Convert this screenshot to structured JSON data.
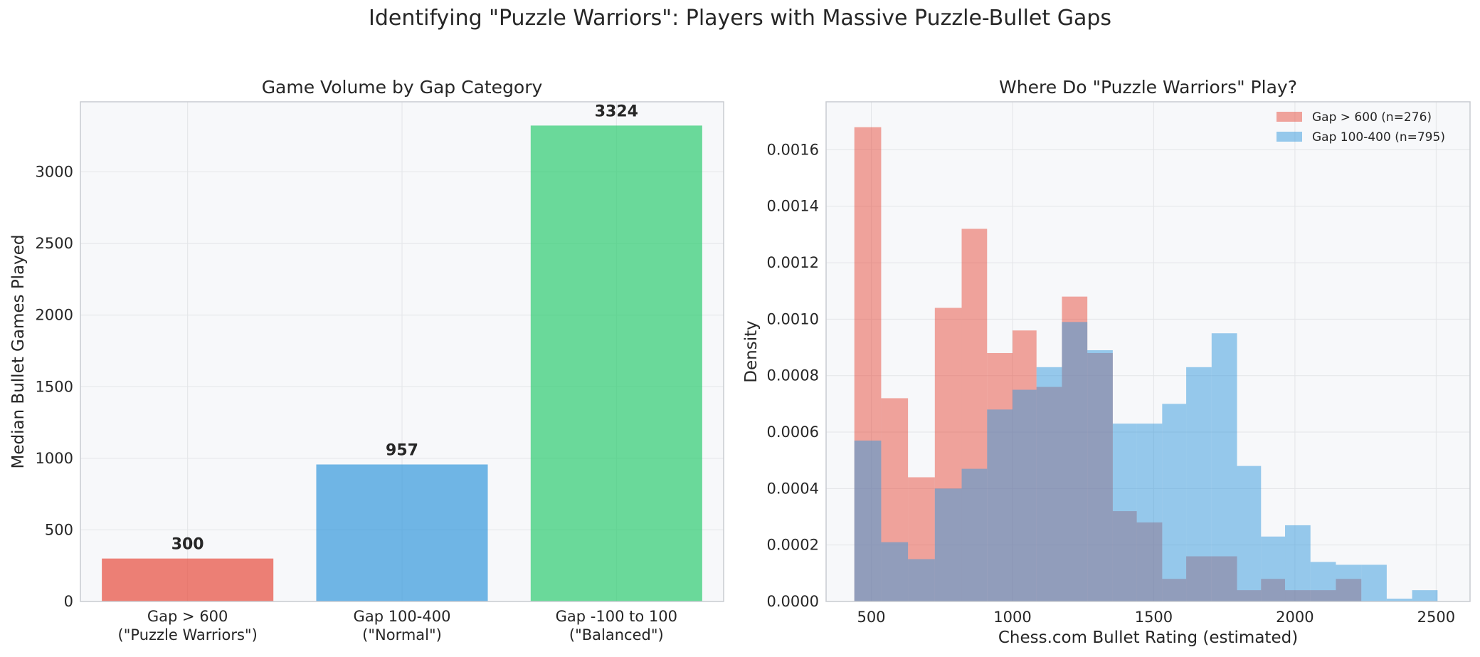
{
  "suptitle": "Identifying \"Puzzle Warriors\": Players with Massive Puzzle-Bullet Gaps",
  "chart_data": [
    {
      "type": "bar",
      "title": "Game Volume by Gap Category",
      "xlabel": "",
      "ylabel": "Median Bullet Games Played",
      "categories": [
        [
          "Gap > 600",
          "(\"Puzzle Warriors\")"
        ],
        [
          "Gap 100-400",
          "(\"Normal\")"
        ],
        [
          "Gap -100 to 100",
          "(\"Balanced\")"
        ]
      ],
      "values": [
        300,
        957,
        3324
      ],
      "value_labels": [
        "300",
        "957",
        "3324"
      ],
      "colors": [
        "#e74c3c",
        "#3498db",
        "#2ecc71"
      ],
      "ylim": [
        0,
        3490
      ],
      "yticks": [
        0,
        500,
        1000,
        1500,
        2000,
        2500,
        3000
      ],
      "ytick_labels": [
        "0",
        "500",
        "1000",
        "1500",
        "2000",
        "2500",
        "3000"
      ],
      "grid": true
    },
    {
      "type": "histogram",
      "title": "Where Do \"Puzzle Warriors\" Play?",
      "xlabel": "Chess.com Bullet Rating (estimated)",
      "ylabel": "Density",
      "xlim": [
        340,
        2620
      ],
      "ylim": [
        0,
        0.00177
      ],
      "xticks": [
        500,
        1000,
        1500,
        2000,
        2500
      ],
      "xtick_labels": [
        "500",
        "1000",
        "1500",
        "2000",
        "2500"
      ],
      "yticks": [
        0,
        0.0002,
        0.0004,
        0.0006,
        0.0008,
        0.001,
        0.0012,
        0.0014,
        0.0016
      ],
      "ytick_labels": [
        "0.0000",
        "0.0002",
        "0.0004",
        "0.0006",
        "0.0008",
        "0.0010",
        "0.0012",
        "0.0014",
        "0.0016"
      ],
      "legend_position": "top-right",
      "grid": true,
      "series": [
        {
          "name": "Gap > 600 (n=276)",
          "color": "#e74c3c",
          "bins": [
            [
              440,
              535,
              0.00168
            ],
            [
              535,
              630,
              0.00072
            ],
            [
              630,
              725,
              0.00044
            ],
            [
              725,
              820,
              0.00104
            ],
            [
              820,
              910,
              0.00132
            ],
            [
              910,
              1000,
              0.00088
            ],
            [
              1000,
              1085,
              0.00096
            ],
            [
              1085,
              1175,
              0.00076
            ],
            [
              1175,
              1265,
              0.00108
            ],
            [
              1265,
              1355,
              0.00088
            ],
            [
              1355,
              1440,
              0.00032
            ],
            [
              1440,
              1530,
              0.00028
            ],
            [
              1530,
              1615,
              8e-05
            ],
            [
              1615,
              1705,
              0.00016
            ],
            [
              1705,
              1795,
              0.00016
            ],
            [
              1795,
              1880,
              4e-05
            ],
            [
              1880,
              1965,
              8e-05
            ],
            [
              1965,
              2055,
              4e-05
            ],
            [
              2055,
              2145,
              4e-05
            ],
            [
              2145,
              2235,
              8e-05
            ]
          ]
        },
        {
          "name": "Gap 100-400 (n=795)",
          "color": "#3498db",
          "bins": [
            [
              440,
              535,
              0.00057
            ],
            [
              535,
              630,
              0.00021
            ],
            [
              630,
              725,
              0.00015
            ],
            [
              725,
              820,
              0.0004
            ],
            [
              820,
              910,
              0.00047
            ],
            [
              910,
              1000,
              0.00068
            ],
            [
              1000,
              1085,
              0.00075
            ],
            [
              1085,
              1175,
              0.00083
            ],
            [
              1175,
              1265,
              0.00099
            ],
            [
              1265,
              1355,
              0.00089
            ],
            [
              1355,
              1440,
              0.00063
            ],
            [
              1440,
              1530,
              0.00063
            ],
            [
              1530,
              1615,
              0.0007
            ],
            [
              1615,
              1705,
              0.00083
            ],
            [
              1705,
              1795,
              0.00095
            ],
            [
              1795,
              1880,
              0.00048
            ],
            [
              1880,
              1965,
              0.00023
            ],
            [
              1965,
              2055,
              0.00027
            ],
            [
              2055,
              2145,
              0.00014
            ],
            [
              2145,
              2235,
              0.00013
            ],
            [
              2235,
              2325,
              0.00013
            ],
            [
              2325,
              2415,
              1e-05
            ],
            [
              2415,
              2505,
              4e-05
            ]
          ]
        }
      ]
    }
  ]
}
